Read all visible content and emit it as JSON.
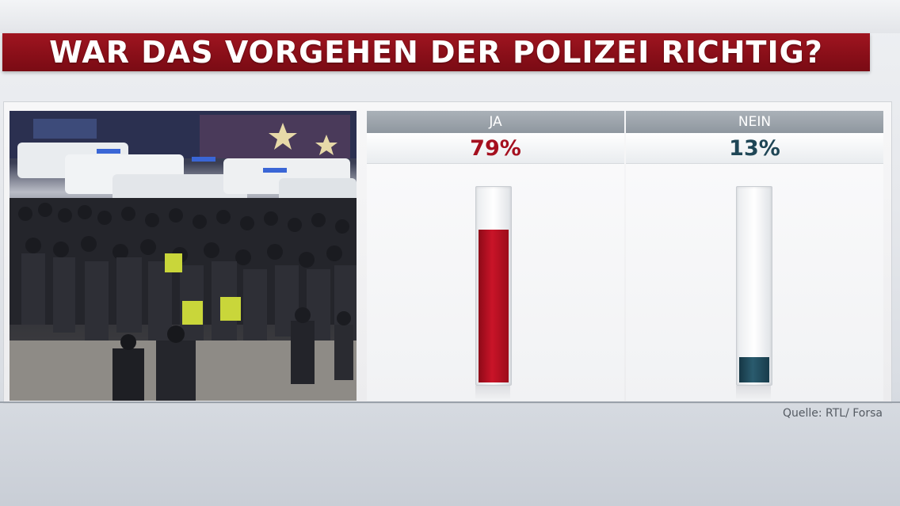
{
  "title": "WAR DAS VORGEHEN DER POLIZEI RICHTIG?",
  "source": "Quelle: RTL/ Forsa",
  "colors": {
    "title_bar": "#8a0f19",
    "ja": "#b30f22",
    "nein": "#1f4656",
    "header_gray": "#9aa1a8"
  },
  "chart_data": {
    "type": "bar",
    "categories": [
      "JA",
      "NEIN"
    ],
    "values": [
      79,
      13
    ],
    "value_labels": [
      "79%",
      "13%"
    ],
    "unit": "%",
    "ylim": [
      0,
      100
    ],
    "grid": false,
    "legend": "none"
  }
}
